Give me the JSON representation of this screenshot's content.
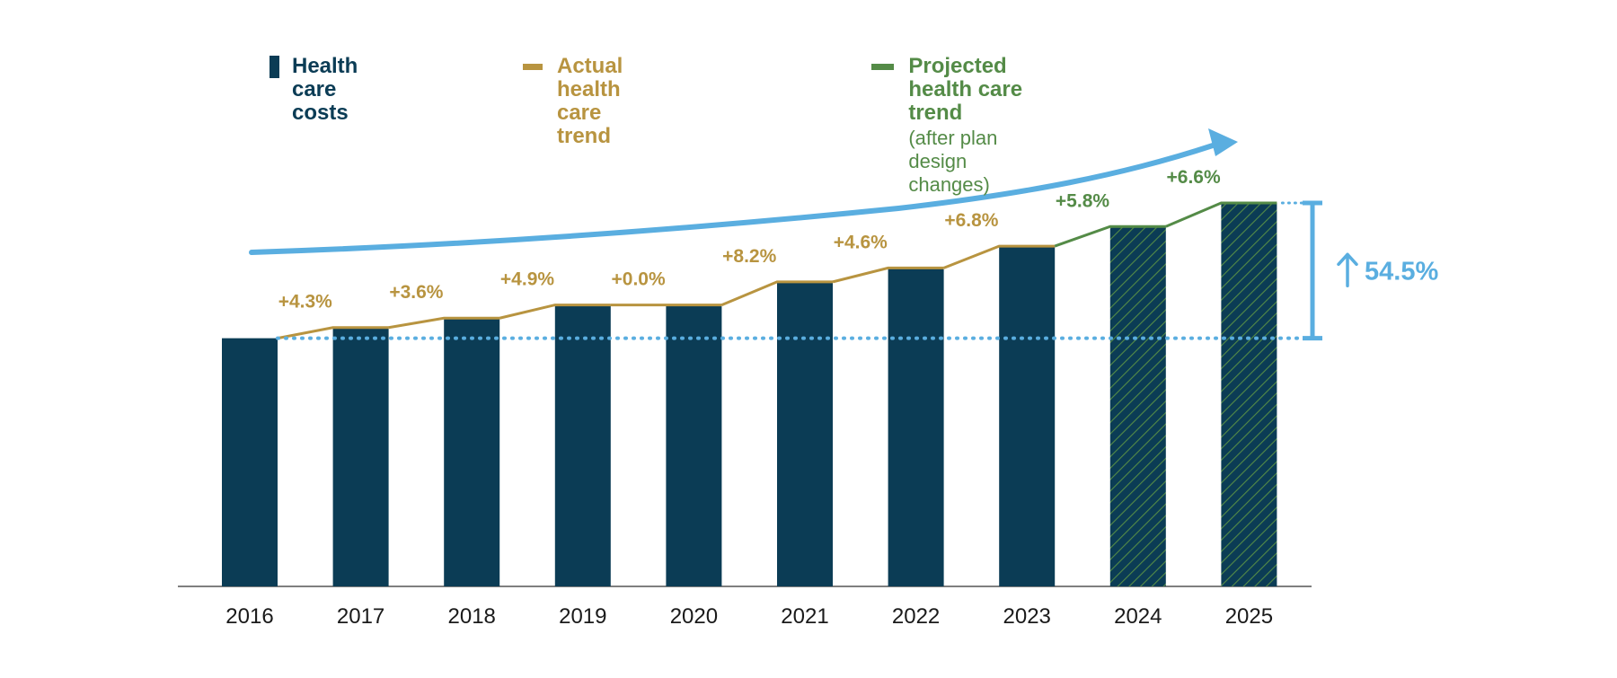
{
  "legend": {
    "costs_label": "Health care costs",
    "actual_label": "Actual health care trend",
    "projected_label": "Projected health care trend",
    "projected_sub": "(after plan design changes)"
  },
  "colors": {
    "bar": "#0b3c55",
    "actual": "#b89440",
    "projected": "#548b47",
    "accent": "#5aaee0",
    "axis": "#555555"
  },
  "increase_label": "54.5%",
  "chart_data": {
    "type": "bar",
    "title": "",
    "xlabel": "",
    "ylabel": "",
    "categories": [
      "2016",
      "2017",
      "2018",
      "2019",
      "2020",
      "2021",
      "2022",
      "2023",
      "2024",
      "2025"
    ],
    "values": [
      100,
      104.3,
      108.1,
      113.4,
      113.4,
      122.7,
      128.3,
      137.1,
      145.0,
      154.5
    ],
    "projected": [
      false,
      false,
      false,
      false,
      false,
      false,
      false,
      false,
      true,
      true
    ],
    "trend_labels": [
      "+4.3%",
      "+3.6%",
      "+4.9%",
      "+0.0%",
      "+8.2%",
      "+4.6%",
      "+6.8%",
      "+5.8%",
      "+6.6%"
    ],
    "trend_types": [
      "actual",
      "actual",
      "actual",
      "actual",
      "actual",
      "actual",
      "actual",
      "projected",
      "projected"
    ],
    "ylim": [
      0,
      160
    ],
    "baseline_value": 100,
    "total_increase": "54.5%"
  }
}
